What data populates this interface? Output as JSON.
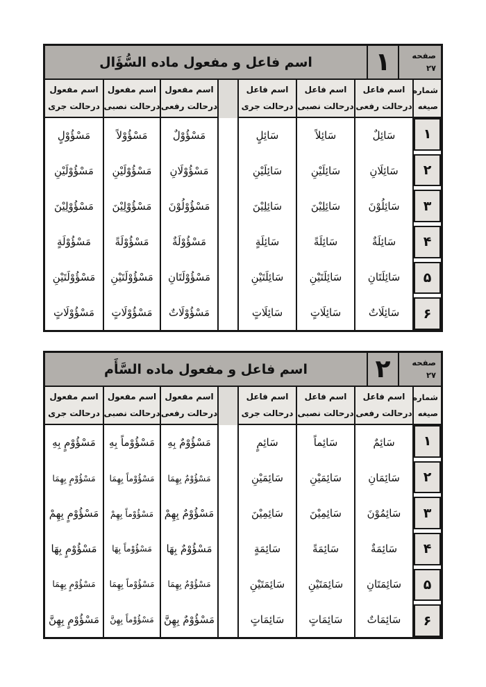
{
  "colors": {
    "border": "#161616",
    "title_band": "#b2afab",
    "header_cell": "#eae8e4",
    "number_cell": "#e5e2de",
    "divider": "#dedcd8",
    "page_background": "#ffffff"
  },
  "tables": [
    {
      "title": "اسم فاعل و مفعول ماده السُّؤَال",
      "number": "۱",
      "page_label": "صفحه",
      "page_number": "۲۷",
      "serial_header1": "شماره",
      "serial_header2": "صیغه",
      "row_numbers": [
        "۱",
        "۲",
        "۳",
        "۴",
        "۵",
        "۶"
      ],
      "columns": [
        {
          "header1": "اسم فاعل",
          "header2": "درحالت رفعی",
          "cells": [
            "سَائِلٌ",
            "سَائِلَانِ",
            "سَائِلُوْنَ",
            "سَائِلَةٌ",
            "سَائِلَتَانِ",
            "سَائِلَاتٌ"
          ]
        },
        {
          "header1": "اسم فاعل",
          "header2": "درحالت نصبی",
          "cells": [
            "سَائِلاً",
            "سَائِلَيْنِ",
            "سَائِلِيْنَ",
            "سَائِلَةً",
            "سَائِلَتَيْنِ",
            "سَائِلَاتٍ"
          ]
        },
        {
          "header1": "اسم فاعل",
          "header2": "درحالت جری",
          "cells": [
            "سَائِلٍ",
            "سَائِلَيْنِ",
            "سَائِلِيْنَ",
            "سَائِلَةٍ",
            "سَائِلَتَيْنِ",
            "سَائِلَاتٍ"
          ]
        },
        {
          "header1": "اسم مفعول",
          "header2": "درحالت رفعی",
          "cells": [
            "مَسْؤُوْلٌ",
            "مَسْؤُوْلَانِ",
            "مَسْؤُوْلُوْنَ",
            "مَسْؤُوْلَةٌ",
            "مَسْؤُوْلَتَانِ",
            "مَسْؤُوْلَاتٌ"
          ]
        },
        {
          "header1": "اسم مفعول",
          "header2": "درحالت نصبی",
          "cells": [
            "مَسْؤُوْلاً",
            "مَسْؤُوْلَيْنِ",
            "مَسْؤُوْلِيْنَ",
            "مَسْؤُوْلَةً",
            "مَسْؤُوْلَتَيْنِ",
            "مَسْؤُوْلَاتٍ"
          ]
        },
        {
          "header1": "اسم مفعول",
          "header2": "درحالت جری",
          "cells": [
            "مَسْؤُوْلٍ",
            "مَسْؤُوْلَيْنِ",
            "مَسْؤُوْلِيْنَ",
            "مَسْؤُوْلَةٍ",
            "مَسْؤُوْلَتَيْنِ",
            "مَسْؤُوْلَاتٍ"
          ]
        }
      ]
    },
    {
      "title": "اسم فاعل و مفعول ماده السَّأَم",
      "number": "۲",
      "page_label": "صفحه",
      "page_number": "۲۷",
      "serial_header1": "شماره",
      "serial_header2": "صیغه",
      "row_numbers": [
        "۱",
        "۲",
        "۳",
        "۴",
        "۵",
        "۶"
      ],
      "columns": [
        {
          "header1": "اسم فاعل",
          "header2": "درحالت رفعی",
          "cells": [
            "سَائِمٌ",
            "سَائِمَانِ",
            "سَائِمُوْنَ",
            "سَائِمَةٌ",
            "سَائِمَتَانِ",
            "سَائِمَاتٌ"
          ]
        },
        {
          "header1": "اسم فاعل",
          "header2": "درحالت نصبی",
          "cells": [
            "سَائِماً",
            "سَائِمَيْنِ",
            "سَائِمِيْنَ",
            "سَائِمَةً",
            "سَائِمَتَيْنِ",
            "سَائِمَاتٍ"
          ]
        },
        {
          "header1": "اسم فاعل",
          "header2": "درحالت جری",
          "cells": [
            "سَائِمٍ",
            "سَائِمَيْنِ",
            "سَائِمِيْنَ",
            "سَائِمَةٍ",
            "سَائِمَتَيْنِ",
            "سَائِمَاتٍ"
          ]
        },
        {
          "header1": "اسم مفعول",
          "header2": "درحالت رفعی",
          "cells": [
            "مَسْؤُوْمٌ بِهِ",
            "مَسْؤُوْمٌ بِهِمَا",
            "مَسْؤُوْمٌ بِهِمْ",
            "مَسْؤُوْمٌ بِهَا",
            "مَسْؤُوْمٌ بِهِمَا",
            "مَسْؤُوْمٌ بِهِنَّ"
          ]
        },
        {
          "header1": "اسم مفعول",
          "header2": "درحالت نصبی",
          "cells": [
            "مَسْؤُوْماً بِهِ",
            "مَسْؤُوْماً بِهِمَا",
            "مَسْؤُوْماً بِهِمْ",
            "مَسْؤُوْماً بِهَا",
            "مَسْؤُوْماً بِهِمَا",
            "مَسْؤُوْماً بِهِنَّ"
          ]
        },
        {
          "header1": "اسم مفعول",
          "header2": "درحالت جری",
          "cells": [
            "مَسْؤُوْمٍ بِهِ",
            "مَسْؤُوْمٍ بِهِمَا",
            "مَسْؤُوْمٍ بِهِمْ",
            "مَسْؤُوْمٍ بِهَا",
            "مَسْؤُوْمٍ بِهِمَا",
            "مَسْؤُوْمٍ بِهِنَّ"
          ]
        }
      ]
    }
  ]
}
